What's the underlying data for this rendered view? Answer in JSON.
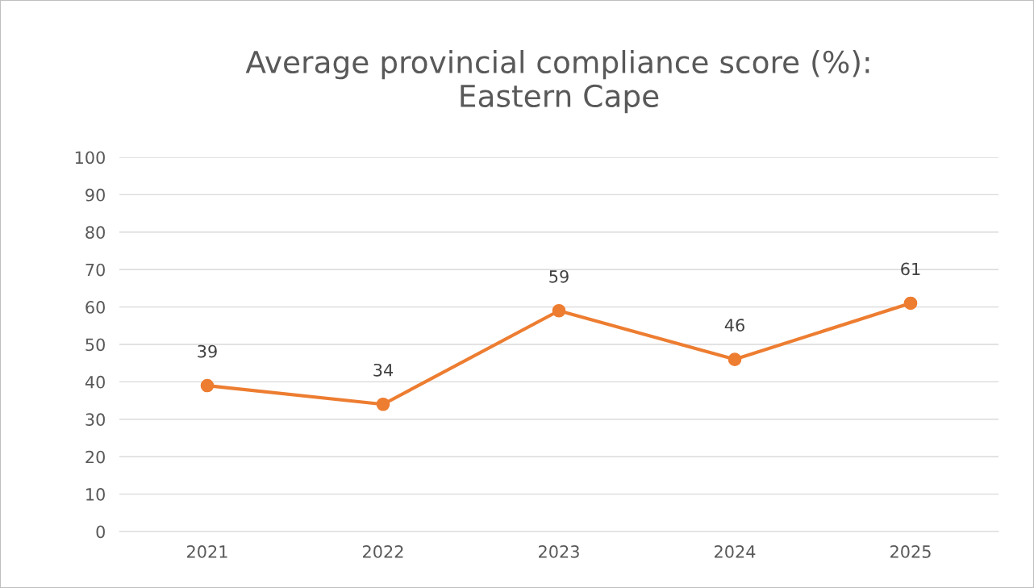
{
  "chart_data": {
    "type": "line",
    "title": "Average provincial compliance score (%):\nEastern Cape",
    "categories": [
      "2021",
      "2022",
      "2023",
      "2024",
      "2025"
    ],
    "series": [
      {
        "color": "#ed7d31",
        "values": [
          39,
          34,
          59,
          46,
          61
        ]
      }
    ],
    "ylim": [
      0,
      100
    ],
    "yticks": [
      0,
      10,
      20,
      30,
      40,
      50,
      60,
      70,
      80,
      90,
      100
    ],
    "grid": "y",
    "marker": "circle",
    "line_style": "solid",
    "data_labels": true
  }
}
